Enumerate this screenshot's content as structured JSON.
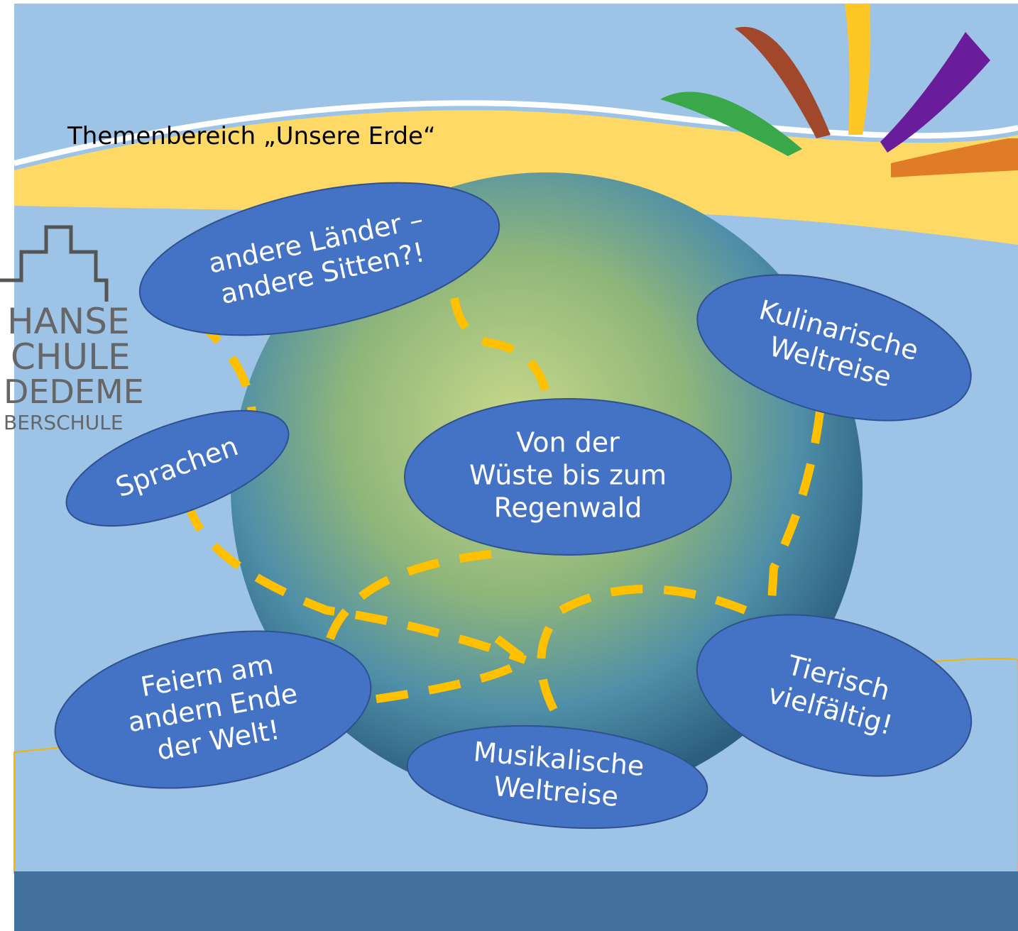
{
  "header": {
    "title": "Themenbereich „Unsere Erde“"
  },
  "logo": {
    "lines": [
      "HANSE",
      "CHULE",
      "DEDEME",
      "BERSCHULE"
    ]
  },
  "nodes": [
    {
      "lines": [
        "andere Länder –",
        "andere Sitten?!"
      ]
    },
    {
      "lines": [
        "Kulinarische",
        "Weltreise"
      ]
    },
    {
      "lines": [
        "Sprachen"
      ]
    },
    {
      "lines": [
        "Von der",
        "Wüste bis zum",
        "Regenwald"
      ]
    },
    {
      "lines": [
        "Feiern am",
        "andern Ende",
        "der Welt!"
      ]
    },
    {
      "lines": [
        "Musikalische",
        "Weltreise"
      ]
    },
    {
      "lines": [
        "Tierisch",
        "vielfältig!"
      ]
    }
  ]
}
